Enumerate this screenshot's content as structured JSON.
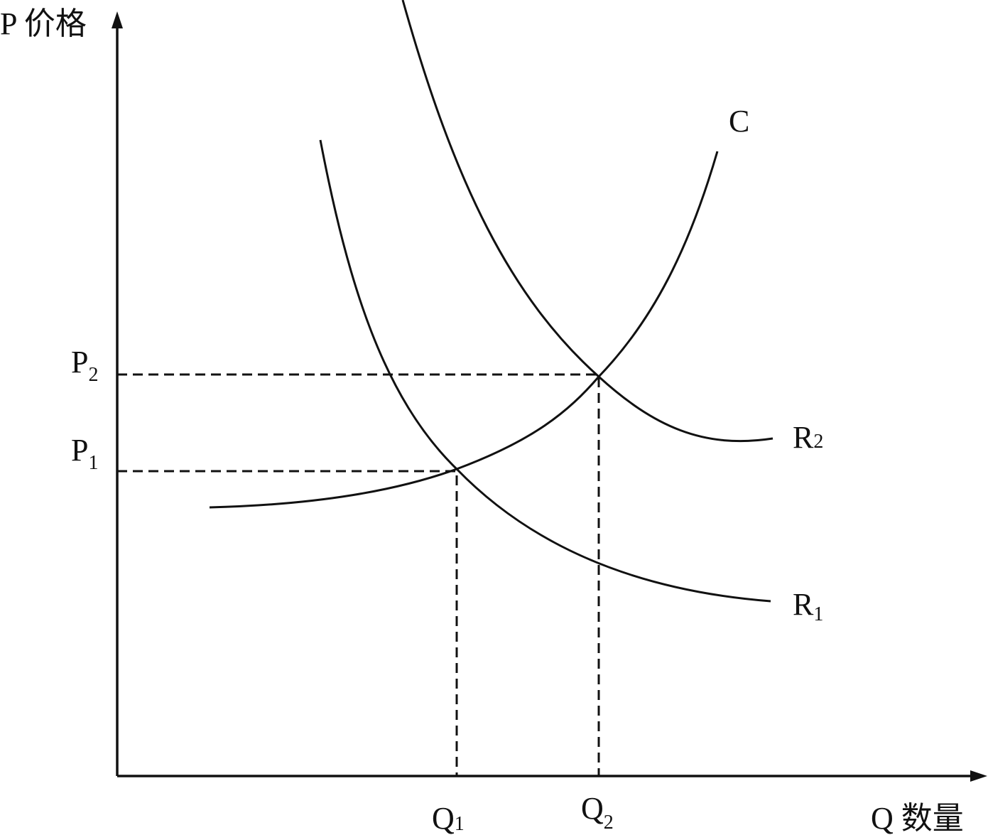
{
  "axes": {
    "y_label": "P 价格",
    "x_label": "Q 数量"
  },
  "price_levels": [
    {
      "symbol": "P",
      "subscript": "2"
    },
    {
      "symbol": "P",
      "subscript": "1"
    }
  ],
  "quantity_levels": [
    {
      "symbol": "Q",
      "subscript": "1"
    },
    {
      "symbol": "Q",
      "subscript": "2"
    }
  ],
  "curves": [
    {
      "label": "C"
    },
    {
      "symbol": "R",
      "subscript": "2"
    },
    {
      "symbol": "R",
      "subscript": "1"
    }
  ]
}
